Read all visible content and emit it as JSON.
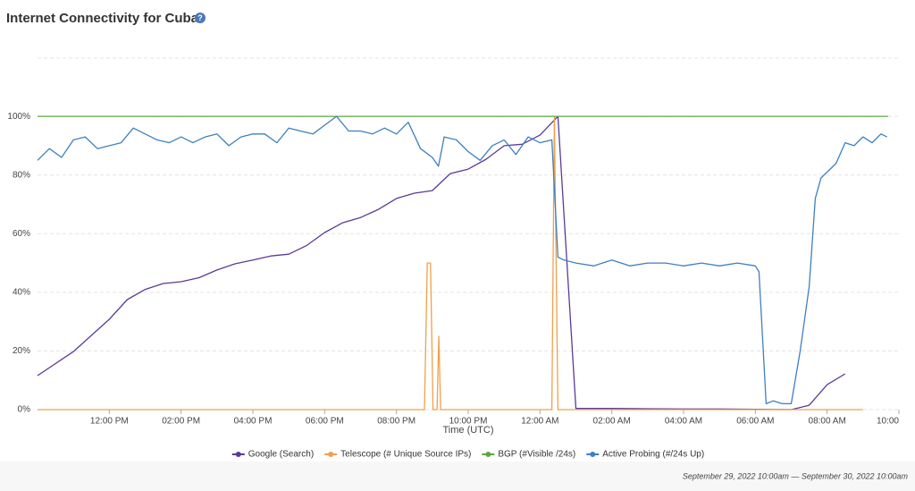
{
  "title_icon": "?",
  "chart_data": {
    "type": "line",
    "title": "Internet Connectivity for Cuba",
    "x_label": "Time (UTC)",
    "date_range": "September 29, 2022 10:00am — September 30, 2022 10:00am",
    "xlim": [
      0,
      24
    ],
    "xticks": [
      {
        "value": 2,
        "label": "12:00 PM"
      },
      {
        "value": 4,
        "label": "02:00 PM"
      },
      {
        "value": 6,
        "label": "04:00 PM"
      },
      {
        "value": 8,
        "label": "06:00 PM"
      },
      {
        "value": 10,
        "label": "08:00 PM"
      },
      {
        "value": 12,
        "label": "10:00 PM"
      },
      {
        "value": 14,
        "label": "12:00 AM"
      },
      {
        "value": 16,
        "label": "02:00 AM"
      },
      {
        "value": 18,
        "label": "04:00 AM"
      },
      {
        "value": 20,
        "label": "06:00 AM"
      },
      {
        "value": 22,
        "label": "08:00 AM"
      },
      {
        "value": 24,
        "label": "10:00"
      }
    ],
    "ylim": [
      0,
      122
    ],
    "yticks": [
      {
        "value": 0,
        "label": "0%"
      },
      {
        "value": 20,
        "label": "20%"
      },
      {
        "value": 40,
        "label": "40%"
      },
      {
        "value": 60,
        "label": "60%"
      },
      {
        "value": 80,
        "label": "80%"
      },
      {
        "value": 100,
        "label": "100%"
      }
    ],
    "grid": true,
    "series": [
      {
        "name": "Google (Search)",
        "color": "#5b3a96",
        "x": [
          0,
          1,
          2,
          2.5,
          3,
          3.5,
          4,
          4.5,
          5,
          5.5,
          6,
          6.5,
          7,
          7.5,
          8,
          8.5,
          9,
          9.5,
          10,
          10.5,
          11,
          11.5,
          12,
          12.5,
          13,
          13.5,
          14,
          14.5,
          15,
          16,
          17,
          18,
          19,
          20,
          21,
          21.5,
          22,
          22.5
        ],
        "values": [
          11.6,
          19.8,
          30.8,
          37.5,
          41,
          43,
          43.6,
          45,
          47.6,
          49.7,
          51,
          52.4,
          53,
          56,
          60.4,
          63.7,
          65.5,
          68.3,
          72,
          73.8,
          74.7,
          80.5,
          82,
          85.4,
          90,
          90.5,
          93.6,
          100,
          0.4,
          0.4,
          0.3,
          0.2,
          0.2,
          0.1,
          0,
          1.5,
          8.5,
          12.2
        ]
      },
      {
        "name": "Telescope (# Unique Source IPs)",
        "color": "#f0a04b",
        "x": [
          0,
          10.78,
          10.86,
          10.95,
          11.02,
          11.13,
          11.18,
          11.23,
          14.33,
          14.4,
          14.5,
          23
        ],
        "values": [
          0,
          0,
          50,
          50,
          0,
          0,
          25,
          0,
          0,
          100,
          0,
          0
        ]
      },
      {
        "name": "BGP (#Visible /24s)",
        "color": "#5aa83c",
        "x": [
          0,
          23.7
        ],
        "values": [
          100,
          100
        ]
      },
      {
        "name": "Active Probing (#/24s Up)",
        "color": "#3f7fbf",
        "x": [
          0,
          0.33,
          0.67,
          1,
          1.33,
          1.67,
          2,
          2.33,
          2.67,
          3,
          3.33,
          3.67,
          4,
          4.33,
          4.67,
          5,
          5.33,
          5.67,
          6,
          6.33,
          6.67,
          7,
          7.33,
          7.67,
          8,
          8.33,
          8.67,
          9,
          9.33,
          9.67,
          10,
          10.33,
          10.67,
          11,
          11.17,
          11.33,
          11.67,
          12,
          12.33,
          12.67,
          13,
          13.33,
          13.67,
          14,
          14.33,
          14.5,
          14.67,
          15,
          15.5,
          16,
          16.5,
          17,
          17.5,
          18,
          18.5,
          19,
          19.5,
          20,
          20.1,
          20.3,
          20.5,
          20.75,
          21,
          21.25,
          21.5,
          21.67,
          21.83,
          22,
          22.25,
          22.5,
          22.75,
          23,
          23.25,
          23.5,
          23.67
        ],
        "values": [
          85,
          89,
          86,
          92,
          93,
          89,
          90,
          91,
          96,
          94,
          92,
          91,
          93,
          91,
          93,
          94,
          90,
          93,
          94,
          94,
          91,
          96,
          95,
          94,
          97,
          100,
          95,
          95,
          94,
          96,
          94,
          98,
          89,
          86,
          83,
          93,
          92,
          88,
          85,
          90,
          92,
          87,
          93,
          91,
          92,
          52,
          51,
          50,
          49,
          51,
          49,
          50,
          50,
          49,
          50,
          49,
          50,
          49,
          47,
          2,
          3,
          2,
          2,
          20,
          42,
          72,
          79,
          81,
          84,
          91,
          90,
          93,
          91,
          94,
          93
        ]
      }
    ]
  }
}
